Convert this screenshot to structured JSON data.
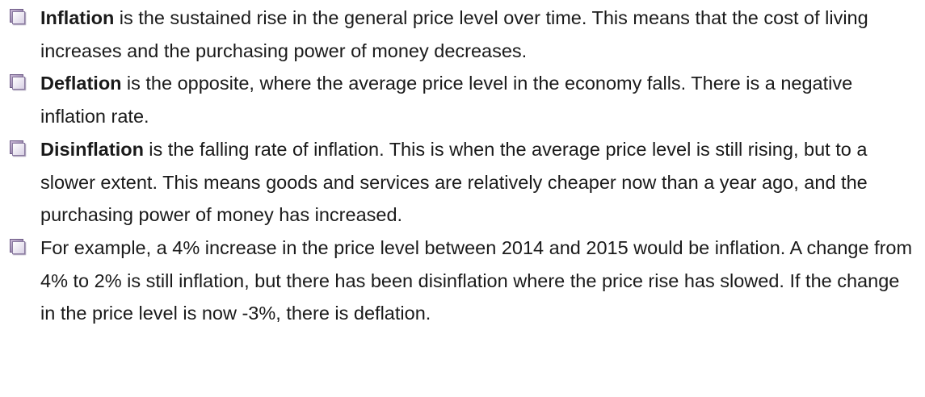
{
  "items": [
    {
      "term": "Inflation",
      "text": "is the sustained rise in the general price level over time. This means that the cost of living increases and the purchasing power of money decreases."
    },
    {
      "term": "Deflation",
      "text": "is the opposite, where the average price level in the economy falls. There is a negative inflation rate."
    },
    {
      "term": "Disinflation",
      "text": "is the falling rate of inflation. This is when the average price level is still rising, but to a slower extent. This means goods and services are relatively cheaper now than a year ago, and the purchasing power of money has increased."
    },
    {
      "text": "For example, a 4% increase in the price level between 2014 and 2015 would be inflation. A change from 4% to 2% is still inflation, but there has been disinflation where the price rise has slowed. If the change in the price level is now -3%, there is deflation."
    }
  ]
}
